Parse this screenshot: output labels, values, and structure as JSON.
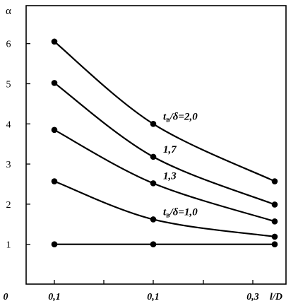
{
  "chart_data": {
    "type": "line",
    "ylabel": "α",
    "xlabel": "l/D",
    "x_tick_labels": [
      "0",
      "0,1",
      "0,1",
      "0,3"
    ],
    "y_ticks": [
      1,
      2,
      3,
      4,
      5,
      6
    ],
    "ylim": [
      0,
      7
    ],
    "grid": false,
    "x_points": [
      "0,1",
      "0,1",
      "l/D"
    ],
    "series": [
      {
        "label_prefix": "t",
        "label_sub": "в",
        "label_suffix": "/δ=2,0",
        "values": [
          6.05,
          4.0,
          2.57
        ]
      },
      {
        "label_prefix": "",
        "label_sub": "",
        "label_suffix": "1,7",
        "values": [
          5.02,
          3.18,
          1.99
        ]
      },
      {
        "label_prefix": "",
        "label_sub": "",
        "label_suffix": "1,3",
        "values": [
          3.85,
          2.52,
          1.57
        ]
      },
      {
        "label_prefix": "t",
        "label_sub": "в",
        "label_suffix": "/δ=1,0",
        "values": [
          2.57,
          1.62,
          1.19
        ]
      },
      {
        "label_prefix": "",
        "label_sub": "",
        "label_suffix": "",
        "values": [
          1.0,
          1.0,
          1.0
        ]
      }
    ]
  }
}
